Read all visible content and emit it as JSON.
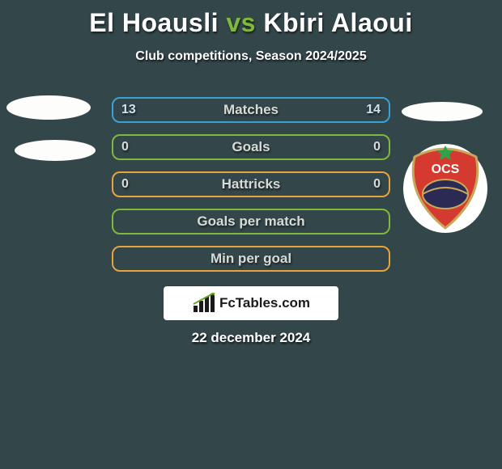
{
  "background_color": "#33464a",
  "title": {
    "player1": "El Hoausli",
    "vs": "vs",
    "player2": "Kbiri Alaoui",
    "player_color": "#ffffff",
    "vs_color": "#7fb83a",
    "fontsize": 32
  },
  "subtitle": {
    "text": "Club competitions, Season 2024/2025",
    "color": "#ffffff",
    "fontsize": 16
  },
  "rows": [
    {
      "label": "Matches",
      "left": "13",
      "right": "14",
      "border": "#39a0d8",
      "label_color": "#d7dbd8",
      "val_color": "#cfe2ec"
    },
    {
      "label": "Goals",
      "left": "0",
      "right": "0",
      "border": "#7fb83a",
      "label_color": "#d7dbd8",
      "val_color": "#d7dbd8"
    },
    {
      "label": "Hattricks",
      "left": "0",
      "right": "0",
      "border": "#e8a33a",
      "label_color": "#d7dbd8",
      "val_color": "#d7dbd8"
    },
    {
      "label": "Goals per match",
      "left": "",
      "right": "",
      "border": "#7fb83a",
      "label_color": "#d7dbd8",
      "val_color": "#d7dbd8"
    },
    {
      "label": "Min per goal",
      "left": "",
      "right": "",
      "border": "#e8a33a",
      "label_color": "#d7dbd8",
      "val_color": "#d7dbd8"
    }
  ],
  "row_style": {
    "height": 32,
    "radius": 10,
    "border_width": 2,
    "gap": 14,
    "label_fontsize": 17,
    "val_fontsize": 16
  },
  "left_ellipses": {
    "color": "#fdfdfb"
  },
  "right_badge": {
    "bg_ellipse_color": "#ffffff",
    "shield_fill": "#d43a2f",
    "shield_stroke": "#c7a85a",
    "center_oval": "#2a2a55",
    "text_top": "OCS",
    "text_color": "#ffffff",
    "star_color": "#2da34a"
  },
  "logo": {
    "box_bg": "#ffffff",
    "text": "FcTables.com",
    "text_color": "#1a1a1a",
    "bars_color": "#1a1a1a",
    "accent_color": "#6aa52a"
  },
  "date": {
    "text": "22 december 2024",
    "color": "#ffffff",
    "fontsize": 17
  }
}
